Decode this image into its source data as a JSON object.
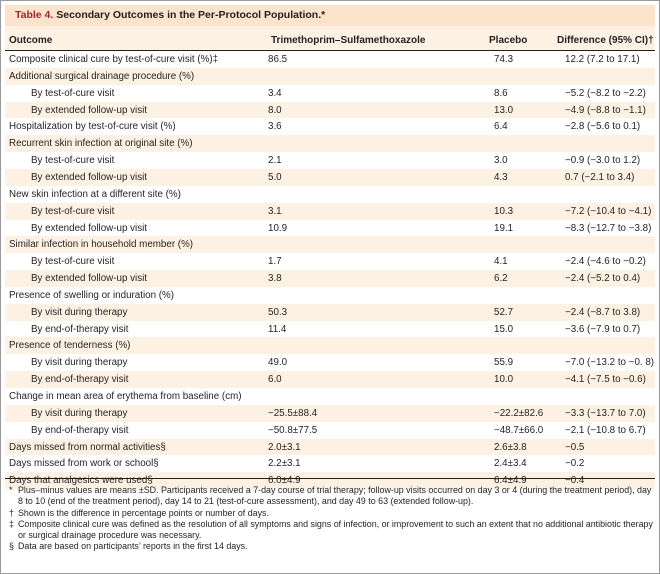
{
  "table": {
    "label": "Table 4.",
    "title": "Secondary Outcomes in the Per-Protocol Population.*",
    "columns": {
      "outcome": "Outcome",
      "tmp": "Trimethoprim–Sulfamethoxazole",
      "placebo": "Placebo",
      "difference": "Difference (95% CI)†"
    },
    "rows": [
      {
        "outcome": "Composite clinical cure by test-of-cure visit (%)‡",
        "tmp": "86.5",
        "placebo": "74.3",
        "difference": "12.2 (7.2 to 17.1)"
      },
      {
        "outcome": "Additional surgical drainage procedure (%)",
        "tmp": "",
        "placebo": "",
        "difference": ""
      },
      {
        "outcome": "By test-of-cure visit",
        "tmp": "3.4",
        "placebo": "8.6",
        "difference": "−5.2 (−8.2 to −2.2)"
      },
      {
        "outcome": "By extended follow-up visit",
        "tmp": "8.0",
        "placebo": "13.0",
        "difference": "−4.9 (−8.8 to −1.1)"
      },
      {
        "outcome": "Hospitalization by test-of-cure visit (%)",
        "tmp": "3.6",
        "placebo": "6.4",
        "difference": "−2.8 (−5.6 to 0.1)"
      },
      {
        "outcome": "Recurrent skin infection at original site (%)",
        "tmp": "",
        "placebo": "",
        "difference": ""
      },
      {
        "outcome": "By test-of-cure visit",
        "tmp": "2.1",
        "placebo": "3.0",
        "difference": "−0.9 (−3.0 to 1.2)"
      },
      {
        "outcome": "By extended follow-up visit",
        "tmp": "5.0",
        "placebo": "4.3",
        "difference": "0.7 (−2.1 to 3.4)"
      },
      {
        "outcome": "New skin infection at a different site (%)",
        "tmp": "",
        "placebo": "",
        "difference": ""
      },
      {
        "outcome": "By test-of-cure visit",
        "tmp": "3.1",
        "placebo": "10.3",
        "difference": "−7.2 (−10.4 to −4.1)"
      },
      {
        "outcome": "By extended follow-up visit",
        "tmp": "10.9",
        "placebo": "19.1",
        "difference": "−8.3 (−12.7 to −3.8)"
      },
      {
        "outcome": "Similar infection in household member (%)",
        "tmp": "",
        "placebo": "",
        "difference": ""
      },
      {
        "outcome": "By test-of-cure visit",
        "tmp": "1.7",
        "placebo": "4.1",
        "difference": "−2.4 (−4.6 to −0.2)"
      },
      {
        "outcome": "By extended follow-up visit",
        "tmp": "3.8",
        "placebo": "6.2",
        "difference": "−2.4 (−5.2 to 0.4)"
      },
      {
        "outcome": "Presence of swelling or induration (%)",
        "tmp": "",
        "placebo": "",
        "difference": ""
      },
      {
        "outcome": "By visit during therapy",
        "tmp": "50.3",
        "placebo": "52.7",
        "difference": "−2.4 (−8.7 to 3.8)"
      },
      {
        "outcome": "By end-of-therapy visit",
        "tmp": "11.4",
        "placebo": "15.0",
        "difference": "−3.6 (−7.9 to 0.7)"
      },
      {
        "outcome": "Presence of tenderness (%)",
        "tmp": "",
        "placebo": "",
        "difference": ""
      },
      {
        "outcome": "By visit during therapy",
        "tmp": "49.0",
        "placebo": "55.9",
        "difference": "−7.0 (−13.2 to −0. 8)"
      },
      {
        "outcome": "By end-of-therapy visit",
        "tmp": "6.0",
        "placebo": "10.0",
        "difference": "−4.1 (−7.5 to −0.6)"
      },
      {
        "outcome": "Change in mean area of erythema from baseline (cm)",
        "tmp": "",
        "placebo": "",
        "difference": ""
      },
      {
        "outcome": "By visit during therapy",
        "tmp": "−25.5±88.4",
        "placebo": "−22.2±82.6",
        "difference": "−3.3 (−13.7 to 7.0)"
      },
      {
        "outcome": "By end-of-therapy visit",
        "tmp": "−50.8±77.5",
        "placebo": "−48.7±66.0",
        "difference": "−2.1 (−10.8 to 6.7)"
      },
      {
        "outcome": "Days missed from normal activities§",
        "tmp": "2.0±3.1",
        "placebo": "2.6±3.8",
        "difference": "−0.5"
      },
      {
        "outcome": "Days missed from work or school§",
        "tmp": "2.2±3.1",
        "placebo": "2.4±3.4",
        "difference": "−0.2"
      },
      {
        "outcome": "Days that analgesics were used§",
        "tmp": "6.0±4.9",
        "placebo": "6.4±4.9",
        "difference": "−0.4"
      }
    ]
  },
  "footnotes": [
    {
      "mark": "*",
      "text": "Plus–minus values are means ±SD. Participants received a 7-day course of trial therapy; follow-up visits occurred on day 3 or 4 (during the treatment period), day 8 to 10 (end of the treatment period), day 14 to 21 (test-of-cure assessment), and day 49 to 63 (extended follow-up)."
    },
    {
      "mark": "†",
      "text": "Shown is the difference in percentage points or number of days."
    },
    {
      "mark": "‡",
      "text": "Composite clinical cure was defined as the resolution of all symptoms and signs of infection, or improvement to such an extent that no additional antibiotic therapy or surgical drainage procedure was necessary."
    },
    {
      "mark": "§",
      "text": "Data are based on participants’ reports in the first 14 days."
    }
  ],
  "colors": {
    "title_band": "#fbe3cc",
    "alt_row": "#fdf1e3",
    "label_red": "#a2262f"
  }
}
